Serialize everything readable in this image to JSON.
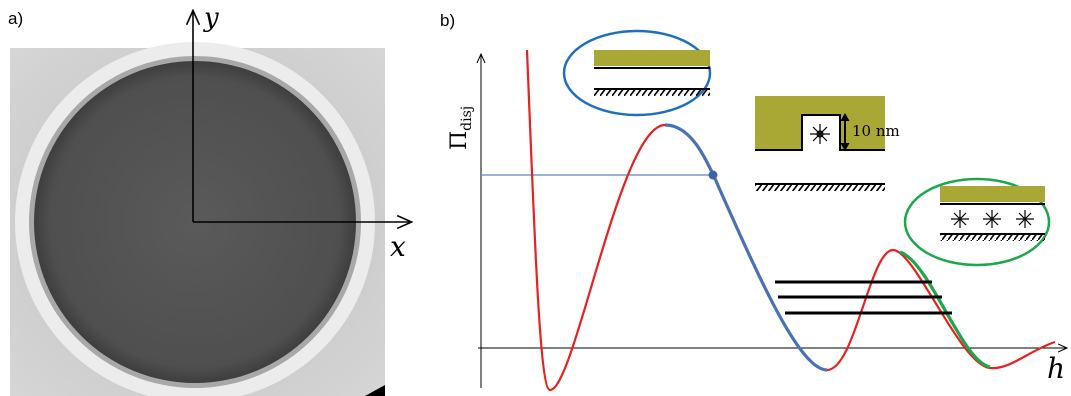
{
  "panel_a": {
    "label": "a)",
    "x_axis": "x",
    "y_axis": "y"
  },
  "panel_b": {
    "label": "b)",
    "y_axis": {
      "symbol": "Π",
      "subscript": "disj"
    },
    "thickness": "10 nm",
    "x_axis": "h"
  }
}
